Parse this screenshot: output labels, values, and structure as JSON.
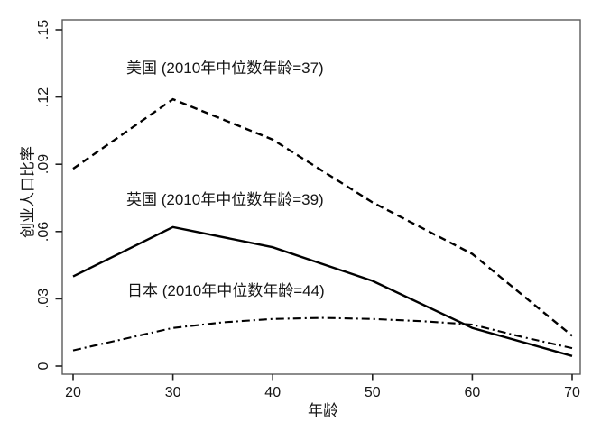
{
  "figure": {
    "x_axis_title": "年龄",
    "y_axis_title": "创业人口比率",
    "y_tick_labels": [
      "0",
      ".03",
      ".06",
      ".09",
      ".12",
      ".15"
    ],
    "x_tick_labels": [
      "20",
      "30",
      "40",
      "50",
      "60",
      "70"
    ],
    "line_color": "#000000",
    "border_color": "#5a5a5a",
    "tick_color": "#222222"
  },
  "chart_data": {
    "type": "line",
    "title": "",
    "xlabel": "年龄",
    "ylabel": "创业人口比率",
    "x_ticks": [
      20,
      30,
      40,
      50,
      60,
      70
    ],
    "y_ticks": [
      0,
      0.03,
      0.06,
      0.09,
      0.12,
      0.15
    ],
    "xlim": [
      18.9,
      70.8
    ],
    "ylim": [
      -0.0045,
      0.158
    ],
    "grid": false,
    "legend_position": "inline-annotations",
    "series": [
      {
        "name": "美国",
        "annotation": "美国 (2010年中位数年龄=37)",
        "median_age_2010": 37,
        "line_style": "dashed",
        "color": "#000000",
        "x": [
          20,
          30,
          40,
          50,
          60,
          70
        ],
        "y": [
          0.088,
          0.119,
          0.101,
          0.073,
          0.05,
          0.0135
        ]
      },
      {
        "name": "英国",
        "annotation": "英国 (2010年中位数年龄=39)",
        "median_age_2010": 39,
        "line_style": "solid",
        "color": "#000000",
        "x": [
          20,
          30,
          40,
          50,
          60,
          70
        ],
        "y": [
          0.04,
          0.062,
          0.053,
          0.038,
          0.017,
          0.0045
        ]
      },
      {
        "name": "日本",
        "annotation": "日本 (2010年中位数年龄=44)",
        "median_age_2010": 44,
        "line_style": "dash-dot",
        "color": "#000000",
        "x": [
          20,
          25,
          30,
          35,
          40,
          45,
          50,
          55,
          60,
          65,
          70
        ],
        "y": [
          0.007,
          0.012,
          0.017,
          0.0195,
          0.021,
          0.0215,
          0.021,
          0.02,
          0.0185,
          0.013,
          0.008
        ]
      }
    ]
  }
}
